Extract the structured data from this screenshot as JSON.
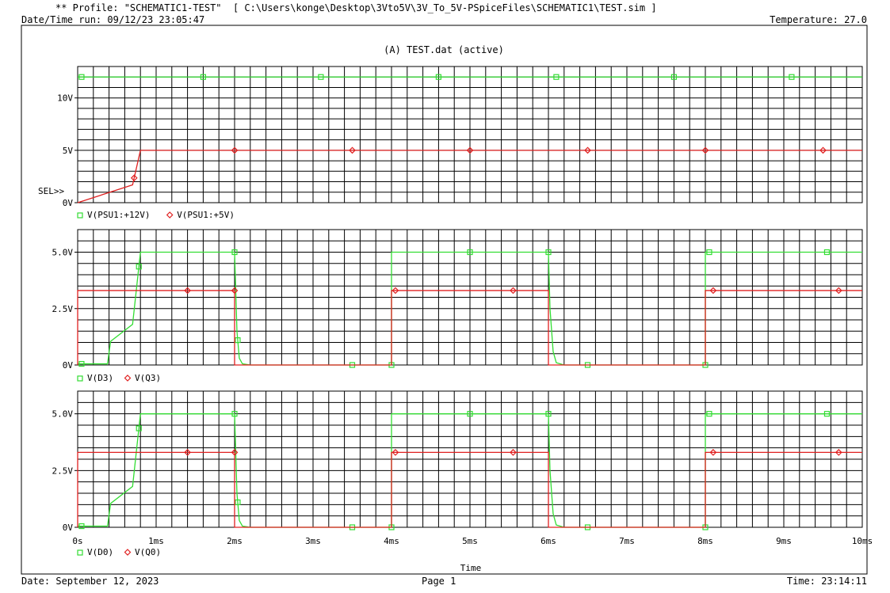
{
  "header": {
    "profile_line": "** Profile: \"SCHEMATIC1-TEST\"  [ C:\\Users\\konge\\Desktop\\3Vto5V\\3V_To_5V-PSpiceFiles\\SCHEMATIC1\\TEST.sim ]",
    "datetime_run": "Date/Time run: 09/12/23 23:05:47",
    "temperature": "Temperature: 27.0"
  },
  "footer": {
    "date": "Date: September 12, 2023",
    "page": "Page 1",
    "time": "Time: 23:14:11"
  },
  "colors": {
    "green": "#33dd33",
    "red": "#e02020",
    "grid": "#000000"
  },
  "chart_data": {
    "type": "line",
    "title": "(A) TEST.dat (active)",
    "xlabel": "Time",
    "x_ticks": [
      "0s",
      "1ms",
      "2ms",
      "3ms",
      "4ms",
      "5ms",
      "6ms",
      "7ms",
      "8ms",
      "9ms",
      "10ms"
    ],
    "xlim": [
      0,
      10
    ],
    "x_unit": "ms",
    "grid": true,
    "selected_marker": "SEL>>",
    "plots": [
      {
        "ylim": [
          0,
          13
        ],
        "y_ticks": [
          {
            "v": 0,
            "label": "0V"
          },
          {
            "v": 5,
            "label": "5V"
          },
          {
            "v": 10,
            "label": "10V"
          }
        ],
        "legend": [
          {
            "name": "V(PSU1:+12V)",
            "color": "#33dd33",
            "marker": "square"
          },
          {
            "name": "V(PSU1:+5V)",
            "color": "#e02020",
            "marker": "diamond"
          }
        ],
        "series": [
          {
            "name": "V(PSU1:+12V)",
            "color": "#33dd33",
            "marker": "square",
            "x": [
              0,
              10
            ],
            "y": [
              12,
              12
            ],
            "markers_x": [
              0.05,
              1.6,
              3.1,
              4.6,
              6.1,
              7.6,
              9.1
            ]
          },
          {
            "name": "V(PSU1:+5V)",
            "color": "#e02020",
            "marker": "diamond",
            "x": [
              0,
              0.7,
              0.8,
              10
            ],
            "y": [
              0,
              1.7,
              5,
              5
            ],
            "markers_x": [
              0.72,
              2.0,
              3.5,
              5.0,
              6.5,
              8.0,
              9.5
            ]
          }
        ]
      },
      {
        "ylim": [
          0,
          6
        ],
        "y_ticks": [
          {
            "v": 0,
            "label": "0V"
          },
          {
            "v": 2.5,
            "label": "2.5V"
          },
          {
            "v": 5,
            "label": "5.0V"
          }
        ],
        "legend": [
          {
            "name": "V(D3)",
            "color": "#33dd33",
            "marker": "square"
          },
          {
            "name": "V(Q3)",
            "color": "#e02020",
            "marker": "diamond"
          }
        ],
        "series": [
          {
            "name": "V(D3)",
            "color": "#33dd33",
            "marker": "square",
            "x": [
              0,
              0.38,
              0.42,
              0.7,
              0.8,
              2.0,
              2.03,
              2.06,
              2.1,
              2.2,
              4.0,
              4.0,
              6.0,
              6.02,
              6.06,
              6.1,
              6.2,
              8.0,
              8.0,
              10
            ],
            "y": [
              0.05,
              0.05,
              1.05,
              1.8,
              5,
              5,
              1.5,
              0.3,
              0.05,
              0,
              0,
              5,
              5,
              2.5,
              0.6,
              0.1,
              0,
              0,
              5,
              5
            ],
            "markers_x": [
              0.05,
              0.78,
              2.0,
              2.04,
              3.5,
              4.0,
              5.0,
              6.0,
              6.5,
              8.0,
              8.05,
              9.55
            ]
          },
          {
            "name": "V(Q3)",
            "color": "#e02020",
            "marker": "diamond",
            "x": [
              0,
              0,
              2.0,
              2.0,
              4.0,
              4.0,
              6.0,
              6.0,
              8.0,
              8.0,
              10
            ],
            "y": [
              0,
              3.3,
              3.3,
              0,
              0,
              3.3,
              3.3,
              0,
              0,
              3.3,
              3.3
            ],
            "markers_x": [
              1.4,
              2.0,
              4.05,
              5.55,
              8.1,
              9.7
            ]
          }
        ]
      },
      {
        "ylim": [
          0,
          6
        ],
        "y_ticks": [
          {
            "v": 0,
            "label": "0V"
          },
          {
            "v": 2.5,
            "label": "2.5V"
          },
          {
            "v": 5,
            "label": "5.0V"
          }
        ],
        "legend": [
          {
            "name": "V(D0)",
            "color": "#33dd33",
            "marker": "square"
          },
          {
            "name": "V(Q0)",
            "color": "#e02020",
            "marker": "diamond"
          }
        ],
        "series": [
          {
            "name": "V(D0)",
            "color": "#33dd33",
            "marker": "square",
            "x": [
              0,
              0.38,
              0.42,
              0.7,
              0.8,
              2.0,
              2.03,
              2.06,
              2.1,
              2.2,
              4.0,
              4.0,
              6.0,
              6.02,
              6.06,
              6.1,
              6.2,
              8.0,
              8.0,
              10
            ],
            "y": [
              0.05,
              0.05,
              1.05,
              1.8,
              5,
              5,
              1.5,
              0.3,
              0.05,
              0,
              0,
              5,
              5,
              2.5,
              0.6,
              0.1,
              0,
              0,
              5,
              5
            ],
            "markers_x": [
              0.05,
              0.78,
              2.0,
              2.04,
              3.5,
              4.0,
              5.0,
              6.0,
              6.5,
              8.0,
              8.05,
              9.55
            ]
          },
          {
            "name": "V(Q0)",
            "color": "#e02020",
            "marker": "diamond",
            "x": [
              0,
              0,
              2.0,
              2.0,
              4.0,
              4.0,
              6.0,
              6.0,
              8.0,
              8.0,
              10
            ],
            "y": [
              0,
              3.3,
              3.3,
              0,
              0,
              3.3,
              3.3,
              0,
              0,
              3.3,
              3.3
            ],
            "markers_x": [
              1.4,
              2.0,
              4.05,
              5.55,
              8.1,
              9.7
            ]
          }
        ]
      }
    ]
  }
}
